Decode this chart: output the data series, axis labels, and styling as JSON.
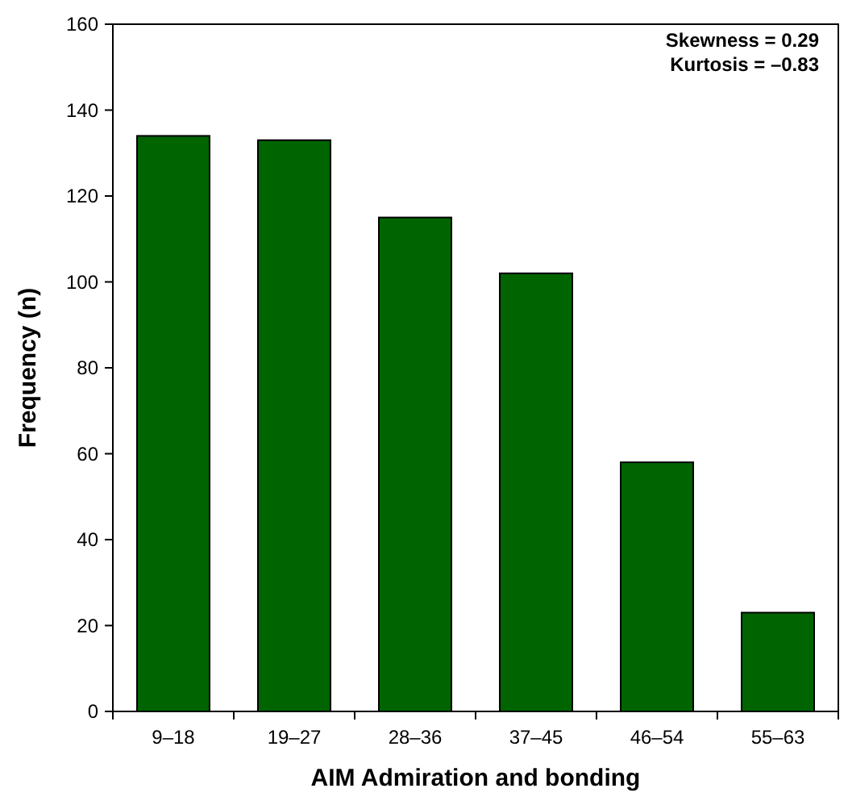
{
  "chart_data": {
    "type": "bar",
    "xlabel": "AIM Admiration and bonding",
    "ylabel": "Frequency (n)",
    "categories": [
      "9–18",
      "19–27",
      "28–36",
      "37–45",
      "46–54",
      "55–63"
    ],
    "values": [
      134,
      133,
      115,
      102,
      58,
      23
    ],
    "color": "#006400",
    "ylim": [
      0,
      160
    ],
    "yticks": [
      0,
      20,
      40,
      60,
      80,
      100,
      120,
      140,
      160
    ],
    "grid": false,
    "annotations": [
      "Skewness = 0.29",
      "Kurtosis = –0.83"
    ]
  }
}
